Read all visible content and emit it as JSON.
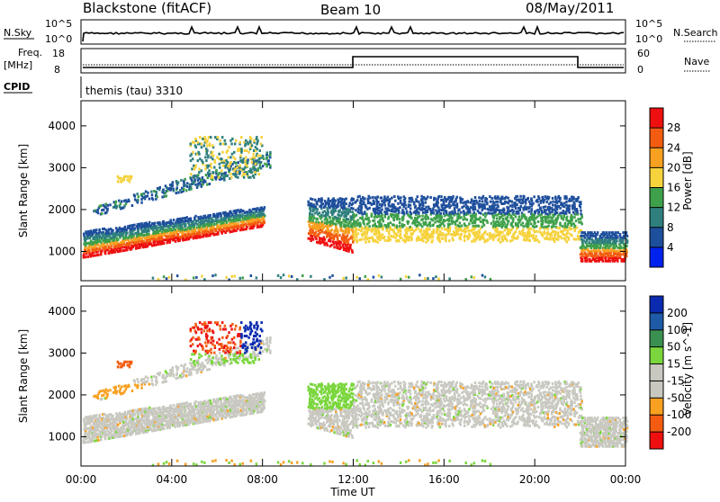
{
  "header": {
    "title": "Blackstone (fitACF)",
    "beam": "Beam 10",
    "date": "08/May/2011"
  },
  "status_panels": {
    "nsky_label": "N.Sky",
    "nsky_max": "10^5",
    "nsky_min": "10^0",
    "nsearch_label": "N.Search",
    "nsearch_max": "10^5",
    "nsearch_min": "10^0",
    "freq_label": "Freq.",
    "freq_unit": "[MHz]",
    "freq_max": "18",
    "freq_min": "8",
    "nave_label": "Nave",
    "nave_max": "60",
    "nave_min": "0",
    "cpid_label": "CPID",
    "cpid_text": "themis (tau) 3310"
  },
  "colors": {
    "power": [
      "#0022ee",
      "#1e4f9c",
      "#2f7f7f",
      "#3ea04a",
      "#f6d23c",
      "#f8a020",
      "#f35c10",
      "#ee1010"
    ],
    "velocity": [
      "#ee1010",
      "#f35c10",
      "#f8a020",
      "#c8c8c0",
      "#c8c8c0",
      "#7ad63c",
      "#3a9050",
      "#1e5aa8",
      "#0a2ab0"
    ]
  },
  "chart_data": [
    {
      "type": "heatmap",
      "name": "power",
      "ylabel": "Slant Range [km]",
      "xlabel": "",
      "ylim": [
        300,
        4600
      ],
      "yticks": [
        1000,
        2000,
        3000,
        4000
      ],
      "colorbar": {
        "label": "Power [dB]",
        "ticks": [
          "4",
          "8",
          "12",
          "16",
          "20",
          "24",
          "28"
        ],
        "range": [
          0,
          32
        ]
      },
      "features": [
        {
          "from": 0.0,
          "to": 8.2,
          "low": 880,
          "high": 2150,
          "note": "main band rising"
        },
        {
          "from": 0.5,
          "to": 7.5,
          "low": 1900,
          "high": 3100,
          "note": "upper band"
        },
        {
          "from": 10.0,
          "to": 12.0,
          "low": 1000,
          "high": 2350
        },
        {
          "from": 12.0,
          "to": 22.0,
          "low": 1200,
          "high": 2400
        },
        {
          "from": 22.0,
          "to": 24.0,
          "low": 800,
          "high": 1500
        }
      ]
    },
    {
      "type": "heatmap",
      "name": "velocity",
      "ylabel": "Slant Range [km]",
      "xlabel": "Time UT",
      "ylim": [
        300,
        4600
      ],
      "yticks": [
        1000,
        2000,
        3000,
        4000
      ],
      "colorbar": {
        "label": "Velocity [m s^-1]",
        "ticks": [
          "200",
          "100",
          "50",
          "15",
          "-15",
          "-50",
          "-100",
          "-200"
        ],
        "range": [
          -250,
          250
        ]
      },
      "xticks": [
        "00:00",
        "04:00",
        "08:00",
        "12:00",
        "16:00",
        "20:00",
        "00:00"
      ],
      "xlim_hours": [
        0,
        24
      ]
    }
  ]
}
